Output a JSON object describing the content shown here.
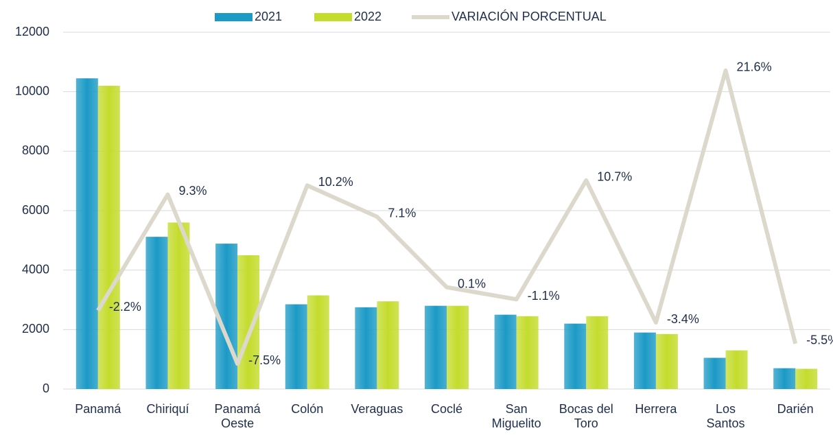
{
  "chart_data": {
    "type": "bar",
    "categories": [
      "Panamá",
      "Chiriquí",
      "Panamá Oeste",
      "Colón",
      "Veraguas",
      "Coclé",
      "San Miguelito",
      "Bocas del Toro",
      "Herrera",
      "Los Santos",
      "Darién"
    ],
    "series": [
      {
        "name": "2021",
        "color": "#1b9ac6",
        "values": [
          10450,
          5120,
          4890,
          2850,
          2750,
          2800,
          2500,
          2200,
          1900,
          1050,
          700
        ]
      },
      {
        "name": "2022",
        "color": "#c4dc2c",
        "values": [
          10200,
          5600,
          4500,
          3150,
          2950,
          2800,
          2450,
          2450,
          1850,
          1300,
          680
        ]
      },
      {
        "name": "VARIACIÓN PORCENTUAL",
        "color": "#ddd8cc",
        "type": "line",
        "axis": "y2",
        "values": [
          -2.2,
          9.3,
          -7.5,
          10.2,
          7.1,
          0.1,
          -1.1,
          10.7,
          -3.4,
          21.6,
          -5.5
        ],
        "value_labels": [
          "-2.2%",
          "9.3%",
          "-7.5%",
          "10.2%",
          "7.1%",
          "0.1%",
          "-1.1%",
          "10.7%",
          "-3.4%",
          "21.6%",
          "-5.5%"
        ]
      }
    ],
    "ylim": [
      0,
      12000
    ],
    "yticks": [
      0,
      2000,
      4000,
      6000,
      8000,
      10000,
      12000
    ],
    "y2lim": [
      -10,
      25.4
    ],
    "grid": true,
    "legend": "top"
  }
}
